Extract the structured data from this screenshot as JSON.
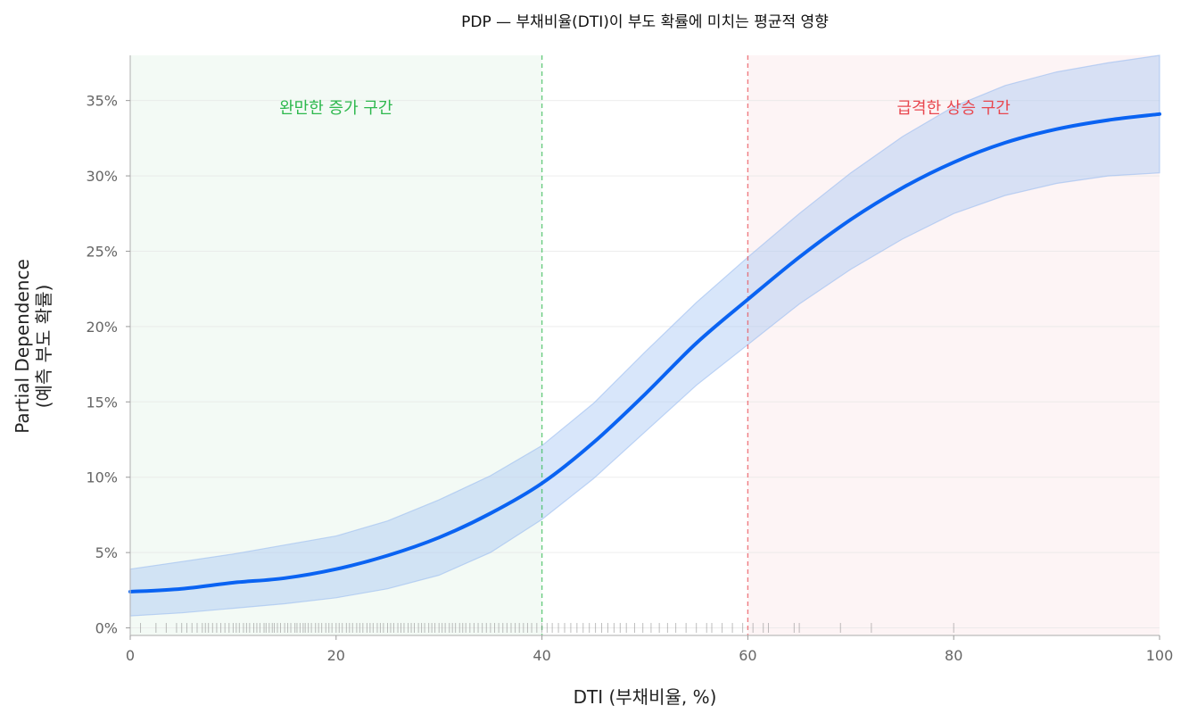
{
  "chart_data": {
    "type": "line",
    "title": "PDP — 부채비율(DTI)이 부도 확률에 미치는 평균적 영향",
    "xlabel": "DTI (부채비율, %)",
    "ylabel_line1": "Partial Dependence",
    "ylabel_line2": "(예측 부도 확률)",
    "xlim": [
      0,
      100
    ],
    "ylim": [
      -0.5,
      38
    ],
    "xticks": [
      0,
      20,
      40,
      60,
      80,
      100
    ],
    "xtick_labels": [
      "0",
      "20",
      "40",
      "60",
      "80",
      "100"
    ],
    "yticks": [
      0,
      5,
      10,
      15,
      20,
      25,
      30,
      35
    ],
    "ytick_labels": [
      "0%",
      "5%",
      "10%",
      "15%",
      "20%",
      "25%",
      "30%",
      "35%"
    ],
    "grid": "horizontal",
    "series": [
      {
        "x": [
          0,
          5,
          10,
          15,
          20,
          25,
          30,
          35,
          40,
          45,
          50,
          55,
          60,
          65,
          70,
          75,
          80,
          85,
          90,
          95,
          100
        ],
        "y": [
          2.4,
          2.6,
          3.0,
          3.3,
          3.9,
          4.8,
          6.0,
          7.6,
          9.6,
          12.3,
          15.5,
          18.9,
          21.8,
          24.6,
          27.1,
          29.2,
          30.9,
          32.2,
          33.1,
          33.7,
          34.1
        ],
        "lower": [
          0.8,
          1.0,
          1.3,
          1.6,
          2.0,
          2.6,
          3.5,
          5.0,
          7.2,
          9.9,
          13.0,
          16.1,
          18.8,
          21.5,
          23.8,
          25.8,
          27.5,
          28.7,
          29.5,
          30.0,
          30.2
        ],
        "upper": [
          3.9,
          4.4,
          4.9,
          5.5,
          6.1,
          7.1,
          8.5,
          10.1,
          12.1,
          14.9,
          18.3,
          21.6,
          24.6,
          27.5,
          30.2,
          32.6,
          34.6,
          36.0,
          36.9,
          37.5,
          38.0
        ]
      }
    ],
    "regions": [
      {
        "x_start": 0,
        "x_end": 40,
        "label": "완만한 증가 구간",
        "label_x": 20,
        "label_y": 34.5,
        "color": "#2db84d",
        "fill": "#eaf6ec"
      },
      {
        "x_start": 60,
        "x_end": 100,
        "label": "급격한 상승 구간",
        "label_x": 80,
        "label_y": 34.5,
        "color": "#e8474f",
        "fill": "#fcebed"
      }
    ],
    "rug_x": [
      1,
      2.5,
      3.5,
      4.5,
      5,
      5.5,
      6,
      6.5,
      7,
      7.3,
      7.6,
      8,
      8.4,
      8.8,
      9.2,
      9.6,
      10,
      10.3,
      10.6,
      11,
      11.3,
      11.6,
      12,
      12.3,
      12.6,
      13,
      13.2,
      13.5,
      13.8,
      14,
      14.3,
      14.6,
      15,
      15.3,
      15.6,
      16,
      16.2,
      16.5,
      16.8,
      17,
      17.3,
      17.6,
      18,
      18.3,
      18.6,
      19,
      19.3,
      19.6,
      20,
      20.3,
      20.6,
      21,
      21.3,
      21.6,
      22,
      22.3,
      22.6,
      23,
      23.3,
      23.6,
      24,
      24.3,
      24.6,
      25,
      25.3,
      25.6,
      26,
      26.3,
      26.6,
      27,
      27.3,
      27.6,
      28,
      28.3,
      28.6,
      29,
      29.3,
      29.6,
      30,
      30.3,
      30.6,
      31,
      31.3,
      31.6,
      32,
      32.3,
      32.6,
      33,
      33.4,
      33.8,
      34.2,
      34.6,
      35,
      35.4,
      35.8,
      36.2,
      36.6,
      37,
      37.4,
      37.8,
      38.2,
      38.6,
      39,
      39.5,
      40,
      40.5,
      41,
      41.6,
      42.2,
      42.8,
      43.4,
      44,
      44.6,
      45.2,
      45.8,
      46.4,
      47,
      47.6,
      48.2,
      49,
      49.8,
      50.6,
      51.4,
      52.2,
      53,
      54,
      55,
      56,
      56.5,
      57.5,
      58.5,
      59.5,
      60.5,
      61.5,
      62,
      64.5,
      65,
      69,
      72,
      80
    ]
  }
}
